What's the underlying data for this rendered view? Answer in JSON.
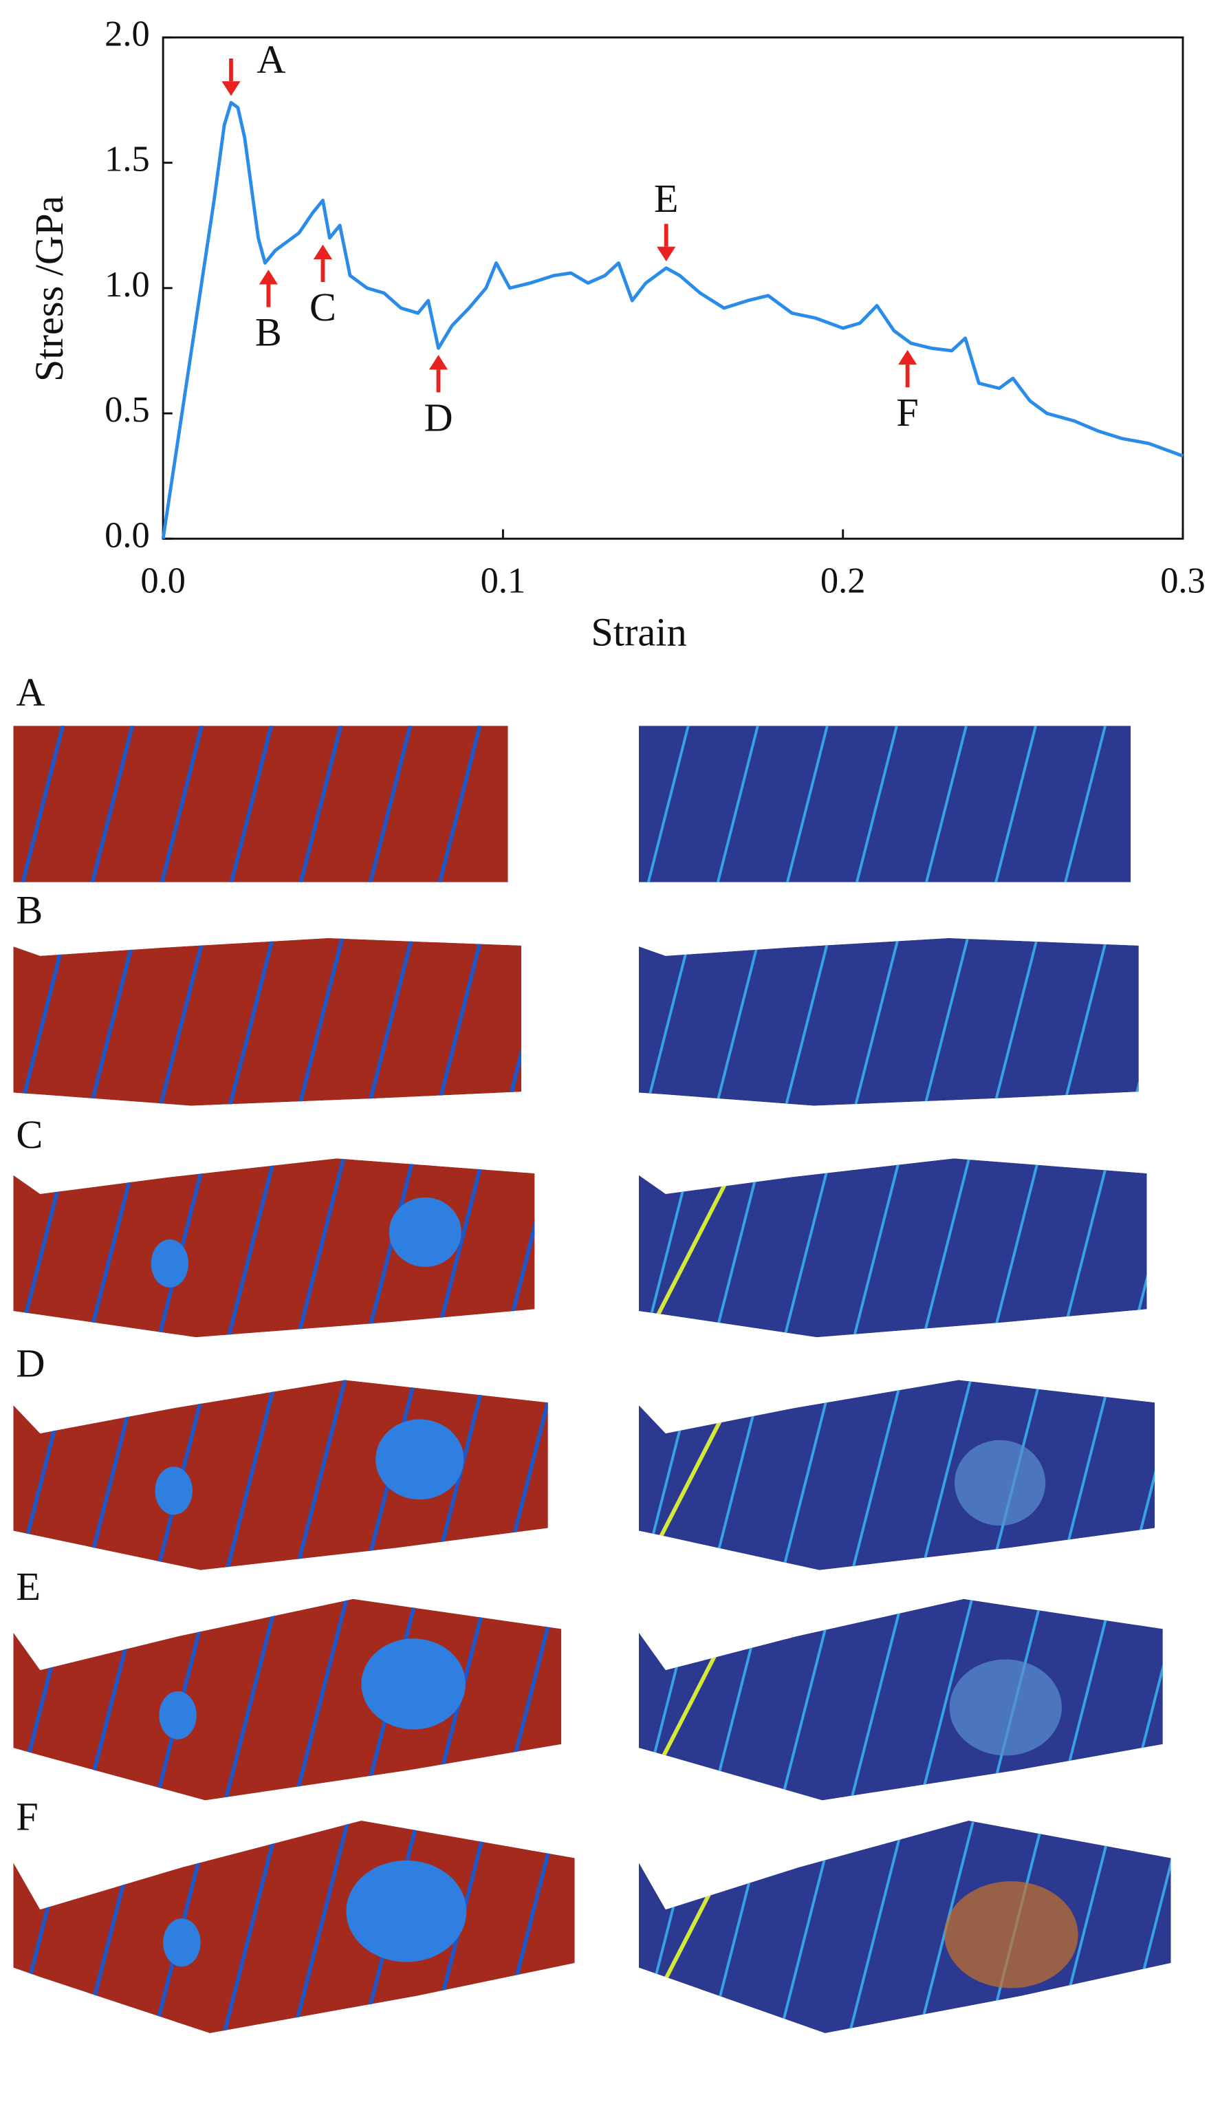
{
  "chart_data": {
    "type": "line",
    "x_label": "Strain",
    "y_label": "Stress /GPa",
    "x": [
      0,
      0.005,
      0.01,
      0.015,
      0.018,
      0.02,
      0.022,
      0.024,
      0.026,
      0.028,
      0.03,
      0.033,
      0.036,
      0.04,
      0.044,
      0.047,
      0.049,
      0.052,
      0.055,
      0.06,
      0.065,
      0.07,
      0.075,
      0.078,
      0.081,
      0.085,
      0.09,
      0.095,
      0.098,
      0.102,
      0.108,
      0.115,
      0.12,
      0.125,
      0.13,
      0.134,
      0.138,
      0.142,
      0.148,
      0.152,
      0.158,
      0.165,
      0.172,
      0.178,
      0.185,
      0.192,
      0.2,
      0.205,
      0.21,
      0.215,
      0.22,
      0.226,
      0.232,
      0.236,
      0.24,
      0.246,
      0.25,
      0.255,
      0.26,
      0.268,
      0.275,
      0.282,
      0.29,
      0.3
    ],
    "series": [
      {
        "color": "#2a8ce8",
        "values": [
          0,
          0.45,
          0.9,
          1.35,
          1.65,
          1.74,
          1.72,
          1.6,
          1.4,
          1.2,
          1.1,
          1.15,
          1.18,
          1.22,
          1.3,
          1.35,
          1.2,
          1.25,
          1.05,
          1.0,
          0.98,
          0.92,
          0.9,
          0.95,
          0.76,
          0.85,
          0.92,
          1.0,
          1.1,
          1.0,
          1.02,
          1.05,
          1.06,
          1.02,
          1.05,
          1.1,
          0.95,
          1.02,
          1.08,
          1.05,
          0.98,
          0.92,
          0.95,
          0.97,
          0.9,
          0.88,
          0.84,
          0.86,
          0.93,
          0.83,
          0.78,
          0.76,
          0.75,
          0.8,
          0.62,
          0.6,
          0.64,
          0.55,
          0.5,
          0.47,
          0.43,
          0.4,
          0.38,
          0.33
        ]
      }
    ],
    "xlim": [
      0,
      0.3
    ],
    "xticks": [
      {
        "value": 0,
        "label": "0.0"
      },
      0.1,
      0.2,
      0.3
    ],
    "ylim": [
      0,
      2.0
    ],
    "yticks": [
      {
        "value": 0,
        "label": "0.0"
      },
      0.5,
      {
        "value": 1,
        "label": "1.0"
      },
      1.5,
      {
        "value": 2,
        "label": "2.0"
      }
    ],
    "annotation_color": "#e8231f",
    "annotations": [
      {
        "text": "A",
        "x": 0.02,
        "y": 1.74,
        "direction": "down"
      },
      {
        "text": "B",
        "x": 0.031,
        "y": 1.1,
        "direction": "up"
      },
      {
        "text": "C",
        "x": 0.047,
        "y": 1.2,
        "direction": "up"
      },
      {
        "text": "D",
        "x": 0.081,
        "y": 0.76,
        "direction": "up"
      },
      {
        "text": "E",
        "x": 0.148,
        "y": 1.08,
        "direction": "down"
      },
      {
        "text": "F",
        "x": 0.219,
        "y": 0.78,
        "direction": "up"
      }
    ]
  },
  "panels": [
    {
      "label": "A"
    },
    {
      "label": "B"
    },
    {
      "label": "C"
    },
    {
      "label": "D"
    },
    {
      "label": "E"
    },
    {
      "label": "F"
    }
  ]
}
